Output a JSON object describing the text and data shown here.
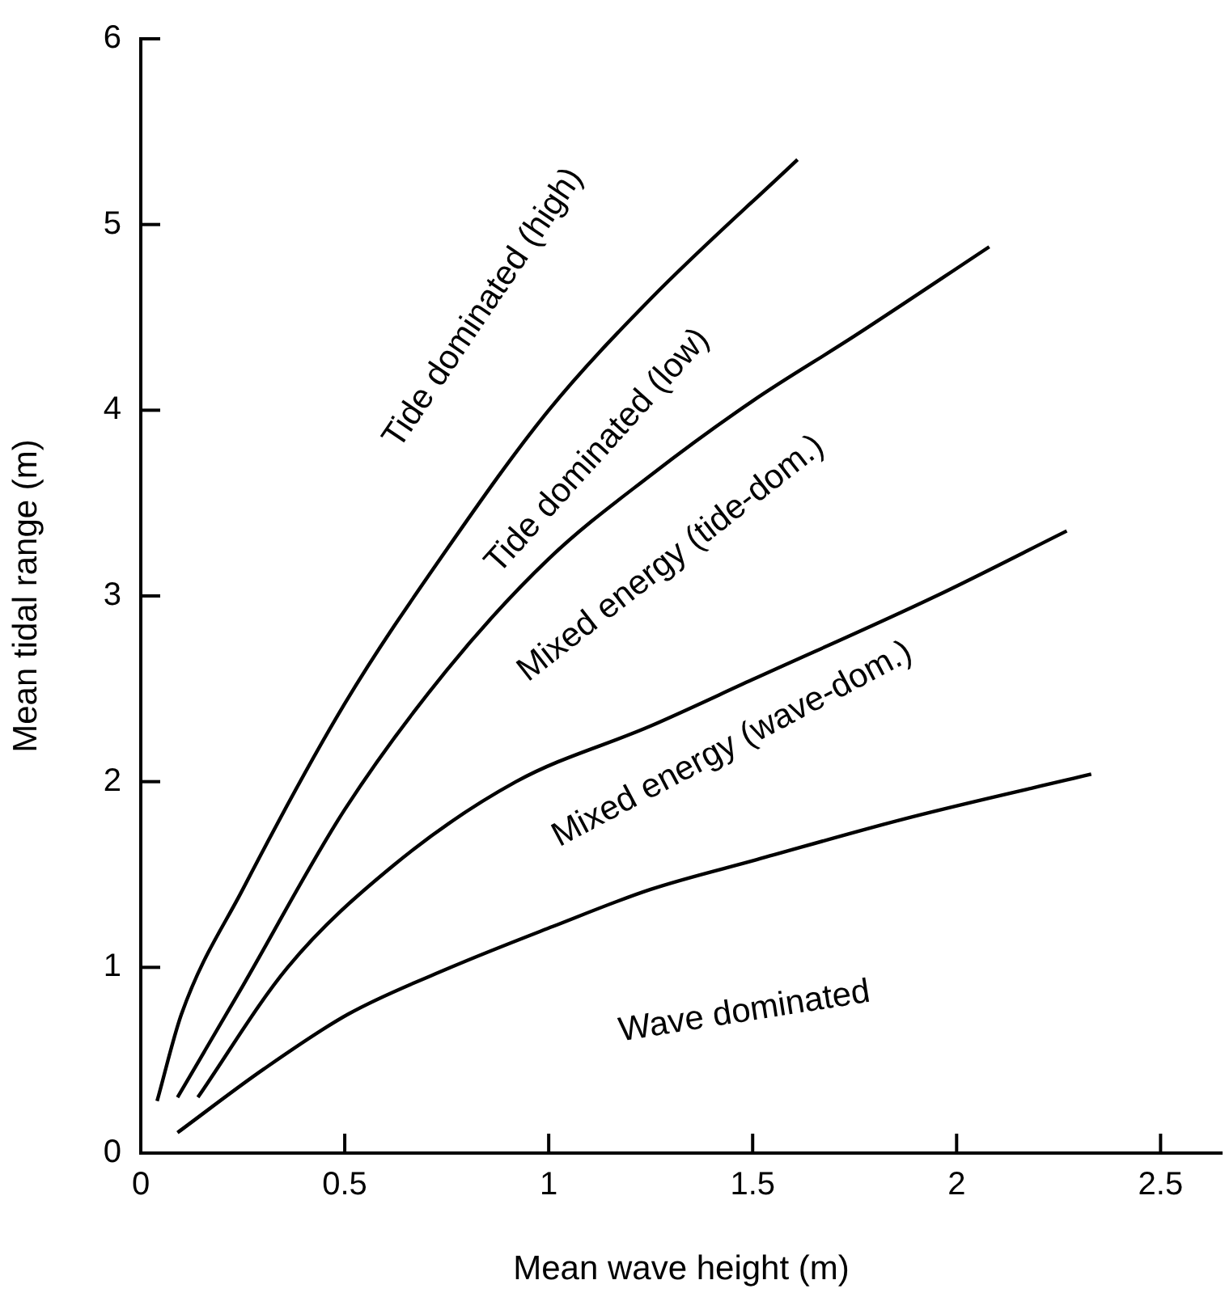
{
  "chart_data": {
    "type": "line",
    "xlabel": "Mean wave height (m)",
    "ylabel": "Mean tidal range (m)",
    "series": [
      {
        "color": "#000000",
        "x": [
          0.04,
          0.1,
          0.25,
          0.5,
          0.75,
          1,
          1.25,
          1.61
        ],
        "values": [
          0.28,
          0.75,
          1.42,
          2.42,
          3.25,
          4,
          4.6,
          5.35
        ]
      },
      {
        "color": "#000000",
        "x": [
          0.09,
          0.25,
          0.5,
          0.75,
          1,
          1.25,
          1.5,
          1.75,
          2.08
        ],
        "values": [
          0.3,
          0.9,
          1.85,
          2.6,
          3.2,
          3.65,
          4.05,
          4.4,
          4.88
        ]
      },
      {
        "color": "#000000",
        "x": [
          0.14,
          0.36,
          0.62,
          0.92,
          1.25,
          1.5,
          1.95,
          2.27
        ],
        "values": [
          0.3,
          1,
          1.55,
          2,
          2.3,
          2.55,
          3,
          3.35
        ]
      },
      {
        "color": "#000000",
        "x": [
          0.09,
          0.3,
          0.51,
          0.76,
          1.01,
          1.25,
          1.51,
          1.89,
          2.33
        ],
        "values": [
          0.11,
          0.45,
          0.75,
          1,
          1.22,
          1.42,
          1.58,
          1.81,
          2.04
        ]
      }
    ],
    "annotations": [
      "Tide dominated (high)",
      "Tide dominated (low)",
      "Mixed energy (tide-dom.)",
      "Mixed energy (wave-dom.)",
      "Wave dominated"
    ],
    "xlim": [
      0,
      2.65
    ],
    "ylim": [
      0,
      6
    ],
    "xticks": [
      0,
      0.5,
      1,
      1.5,
      2,
      2.5
    ],
    "yticks": [
      0,
      1,
      2,
      3,
      4,
      5,
      6
    ],
    "grid": false,
    "legend": false,
    "marker": "none",
    "line_style": "solid"
  }
}
